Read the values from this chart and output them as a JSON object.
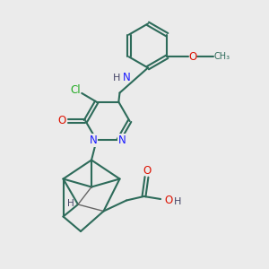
{
  "bg_color": "#ebebeb",
  "bond_color": "#2d6b5a",
  "bond_width": 1.5,
  "N_color": "#1a1aff",
  "O_color": "#dd1100",
  "Cl_color": "#22aa22",
  "H_color": "#444466",
  "font_size": 8.5,
  "figsize": [
    3.0,
    3.0
  ],
  "dpi": 100,
  "xlim": [
    0,
    10
  ],
  "ylim": [
    0,
    10
  ]
}
